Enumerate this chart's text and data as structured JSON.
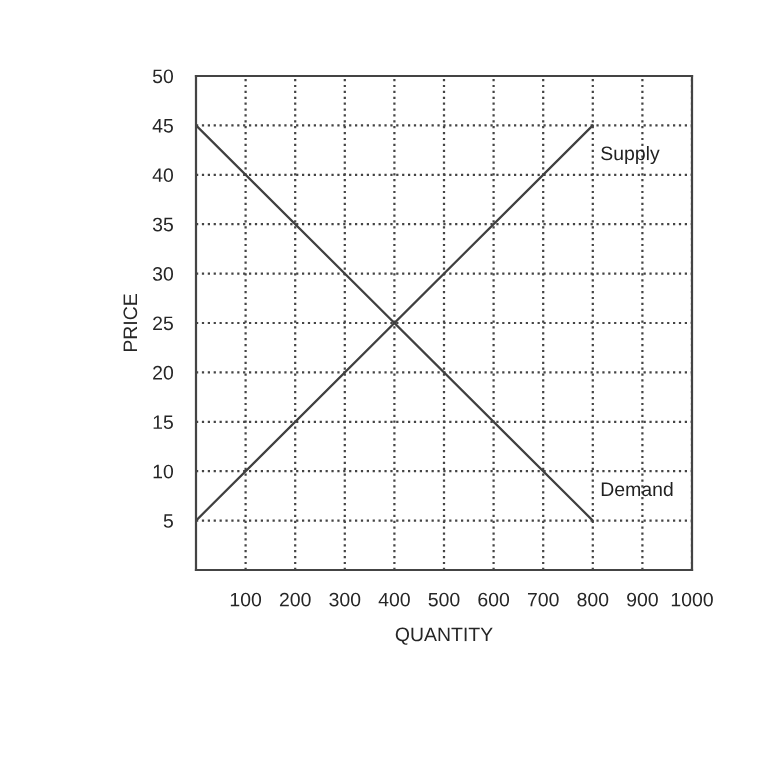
{
  "chart_data": {
    "type": "line",
    "xlabel": "QUANTITY",
    "ylabel": "PRICE",
    "x": [
      0,
      800
    ],
    "series": [
      {
        "name": "Supply",
        "color": "#404040",
        "values": [
          5,
          45
        ]
      },
      {
        "name": "Demand",
        "color": "#404040",
        "values": [
          45,
          5
        ]
      }
    ],
    "xlim": [
      0,
      1000
    ],
    "ylim": [
      0,
      50
    ],
    "xticks": [
      100,
      200,
      300,
      400,
      500,
      600,
      700,
      800,
      900,
      1000
    ],
    "yticks": [
      5,
      10,
      15,
      20,
      25,
      30,
      35,
      40,
      45,
      50
    ],
    "grid": true,
    "legend": false,
    "marker": "none",
    "line_style": "solid"
  }
}
